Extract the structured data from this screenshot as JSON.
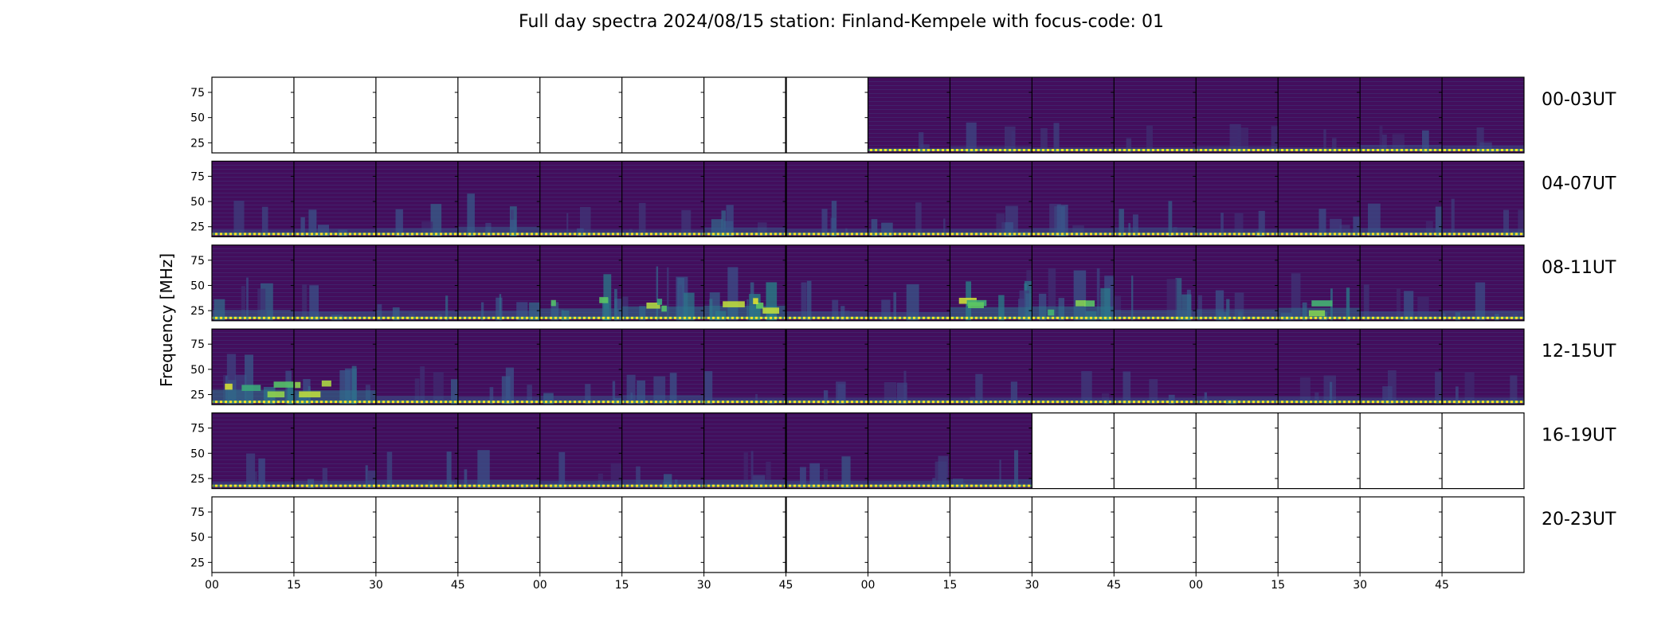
{
  "chart_data": {
    "type": "heatmap",
    "title": "Full day spectra 2024/08/15 station: Finland-Kempele with focus-code: 01",
    "ylabel": "Frequency [MHz]",
    "xlabel": "",
    "ylim": [
      15,
      90
    ],
    "y_ticks": [
      "75",
      "50",
      "25"
    ],
    "y_tick_values": [
      75,
      50,
      25
    ],
    "x_ticks": [
      "00",
      "15",
      "30",
      "45",
      "00",
      "15",
      "30",
      "45",
      "00",
      "15",
      "30",
      "45",
      "00",
      "15",
      "30",
      "45"
    ],
    "x_range_minutes": [
      0,
      240
    ],
    "panel_minutes": 15,
    "colormap": [
      "#440154",
      "#3b528b",
      "#21918c",
      "#5ec962",
      "#fde725"
    ],
    "rows": [
      {
        "label": "00-03UT",
        "panels": [
          0,
          0,
          0,
          0,
          0,
          0,
          0,
          0,
          1,
          1,
          1,
          1,
          1,
          1,
          1,
          1
        ],
        "activity": [
          0,
          0,
          0,
          0,
          0,
          0,
          0,
          0,
          0.15,
          0.25,
          0.2,
          0.2,
          0.25,
          0.2,
          0.35,
          0.3
        ]
      },
      {
        "label": "04-07UT",
        "panels": [
          1,
          1,
          1,
          1,
          1,
          1,
          1,
          1,
          1,
          1,
          1,
          1,
          1,
          1,
          1,
          1
        ],
        "activity": [
          0.3,
          0.35,
          0.4,
          0.5,
          0.3,
          0.3,
          0.45,
          0.35,
          0.35,
          0.35,
          0.4,
          0.45,
          0.35,
          0.35,
          0.4,
          0.35
        ]
      },
      {
        "label": "08-11UT",
        "panels": [
          1,
          1,
          1,
          1,
          1,
          1,
          1,
          1,
          1,
          1,
          1,
          1,
          1,
          1,
          1,
          1
        ],
        "activity": [
          0.55,
          0.45,
          0.5,
          0.5,
          0.65,
          0.8,
          0.85,
          0.45,
          0.4,
          0.75,
          0.8,
          0.55,
          0.6,
          0.7,
          0.45,
          0.5
        ]
      },
      {
        "label": "12-15UT",
        "panels": [
          1,
          1,
          1,
          1,
          1,
          1,
          1,
          1,
          1,
          1,
          1,
          1,
          1,
          1,
          1,
          1
        ],
        "activity": [
          0.85,
          0.8,
          0.4,
          0.35,
          0.4,
          0.45,
          0.3,
          0.3,
          0.3,
          0.3,
          0.3,
          0.3,
          0.35,
          0.35,
          0.3,
          0.3
        ]
      },
      {
        "label": "16-19UT",
        "panels": [
          1,
          1,
          1,
          1,
          1,
          1,
          1,
          1,
          1,
          1,
          0,
          0,
          0,
          0,
          0,
          0
        ],
        "activity": [
          0.3,
          0.35,
          0.4,
          0.4,
          0.35,
          0.4,
          0.4,
          0.35,
          0.35,
          0.45,
          0,
          0,
          0,
          0,
          0,
          0
        ]
      },
      {
        "label": "20-23UT",
        "panels": [
          0,
          0,
          0,
          0,
          0,
          0,
          0,
          0,
          0,
          0,
          0,
          0,
          0,
          0,
          0,
          0
        ],
        "activity": [
          0,
          0,
          0,
          0,
          0,
          0,
          0,
          0,
          0,
          0,
          0,
          0,
          0,
          0,
          0,
          0
        ]
      }
    ]
  }
}
